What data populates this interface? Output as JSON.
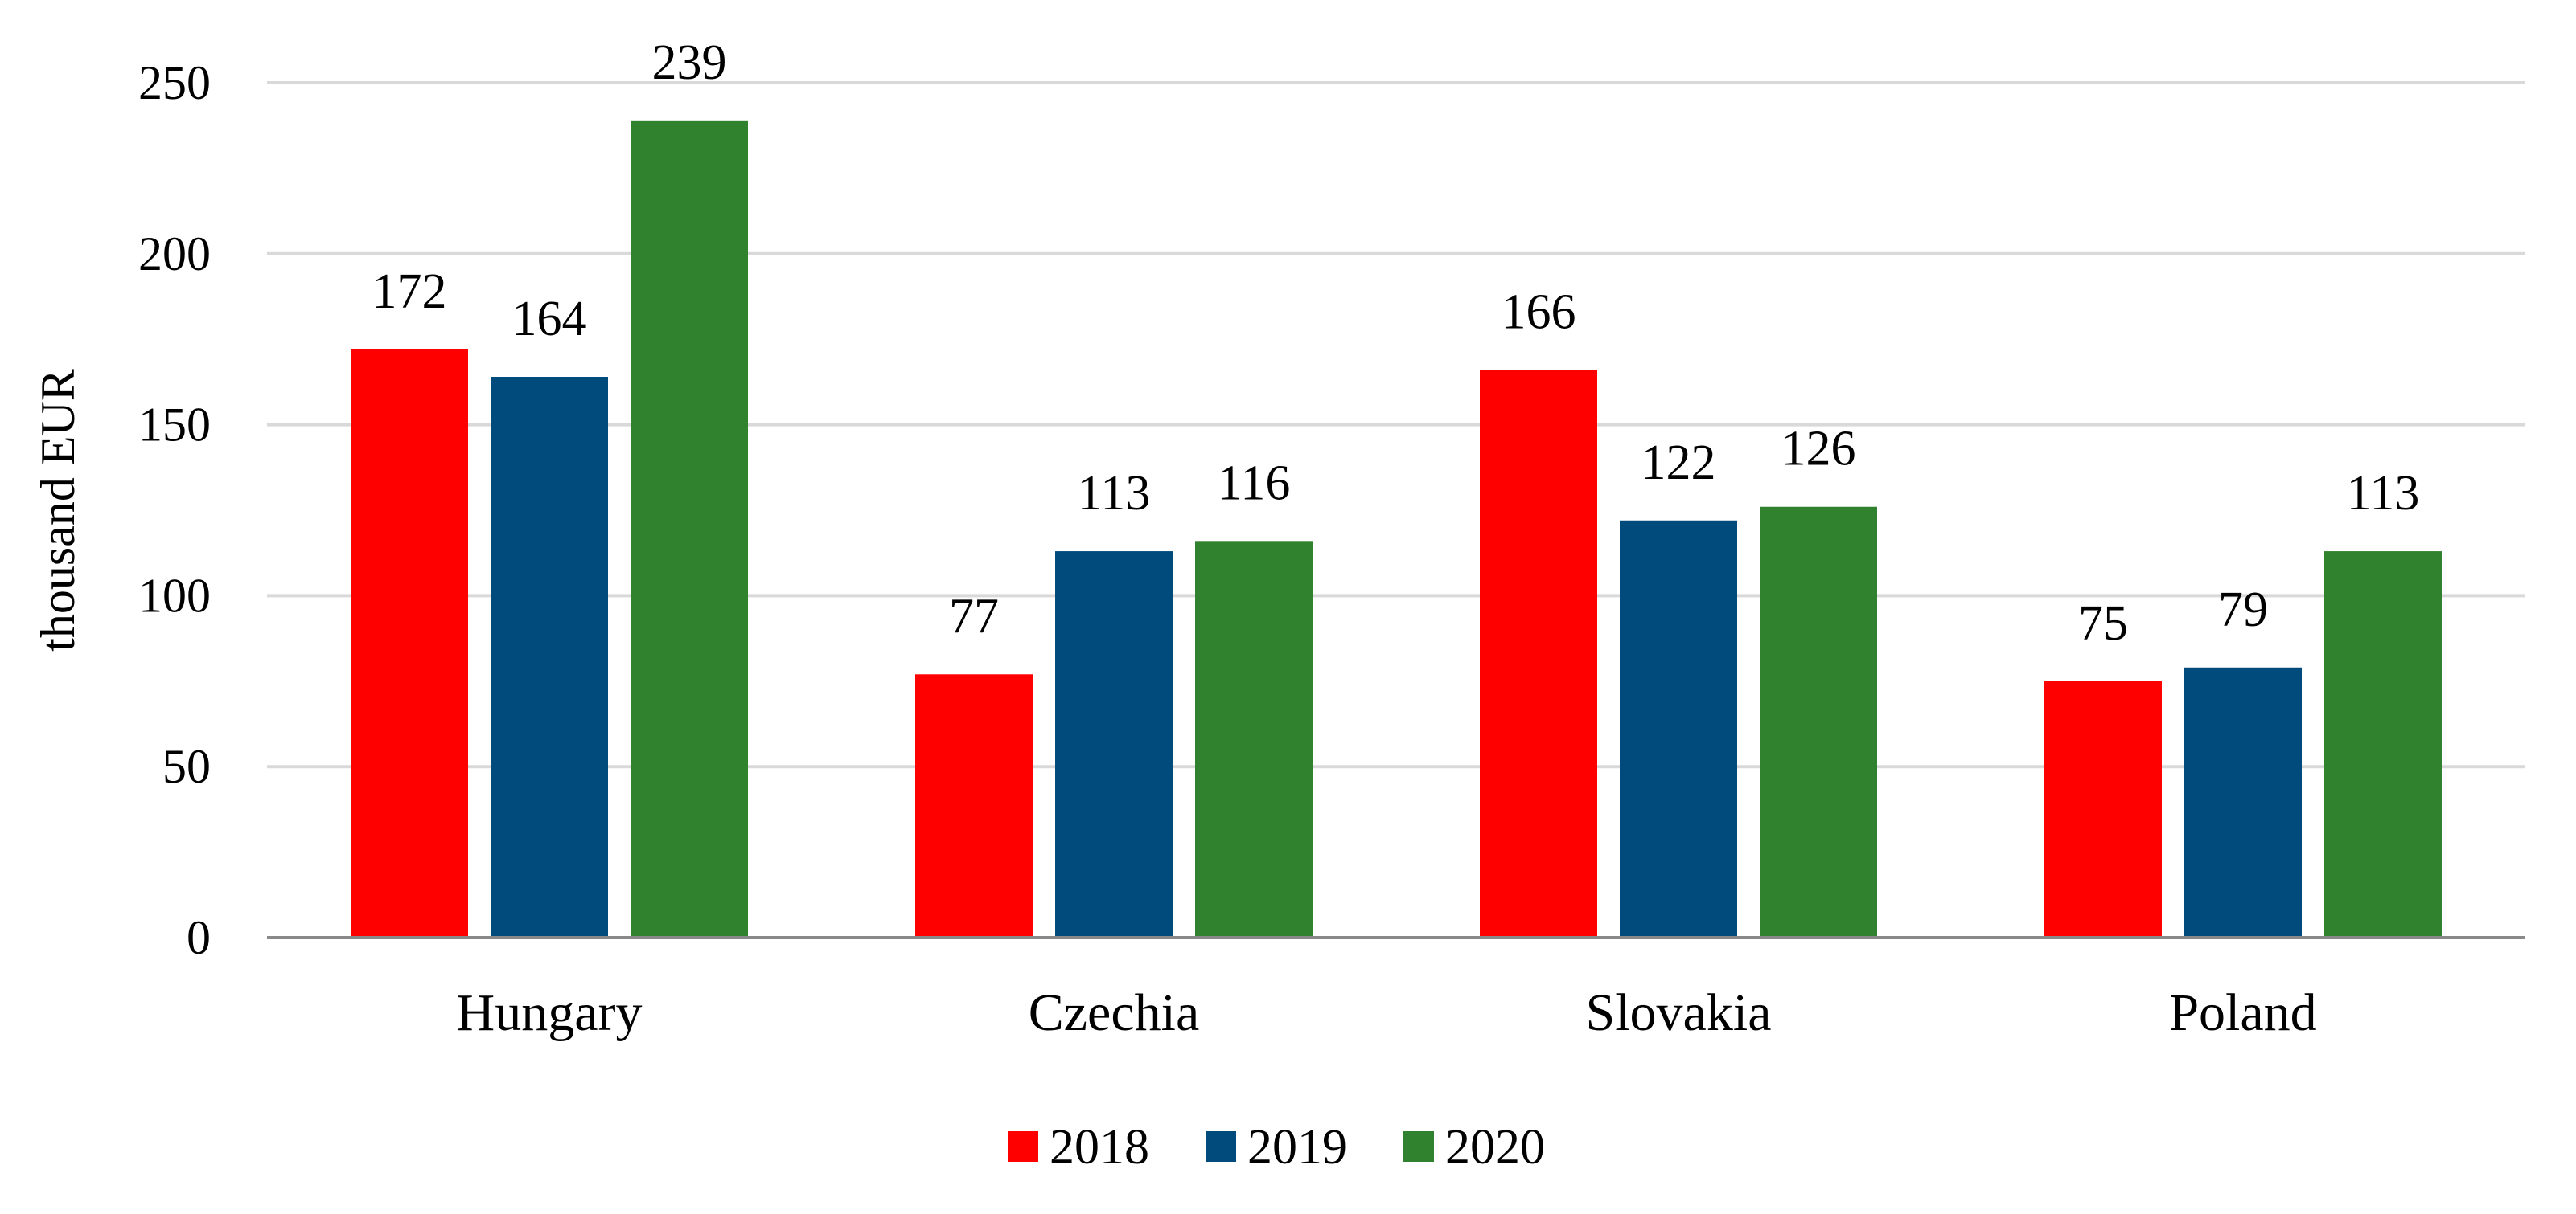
{
  "chart_data": {
    "type": "bar",
    "title": "",
    "xlabel": "",
    "ylabel": "thousand EUR",
    "ylim": [
      0,
      250
    ],
    "yticks": [
      0,
      50,
      100,
      150,
      200,
      250
    ],
    "grid": true,
    "legend_position": "bottom",
    "categories": [
      "Hungary",
      "Czechia",
      "Slovakia",
      "Poland"
    ],
    "series": [
      {
        "name": "2018",
        "color": "#ff0000",
        "values": [
          172,
          77,
          166,
          75
        ]
      },
      {
        "name": "2019",
        "color": "#004a7c",
        "values": [
          164,
          113,
          122,
          79
        ]
      },
      {
        "name": "2020",
        "color": "#31822e",
        "values": [
          239,
          116,
          126,
          113
        ]
      }
    ]
  }
}
